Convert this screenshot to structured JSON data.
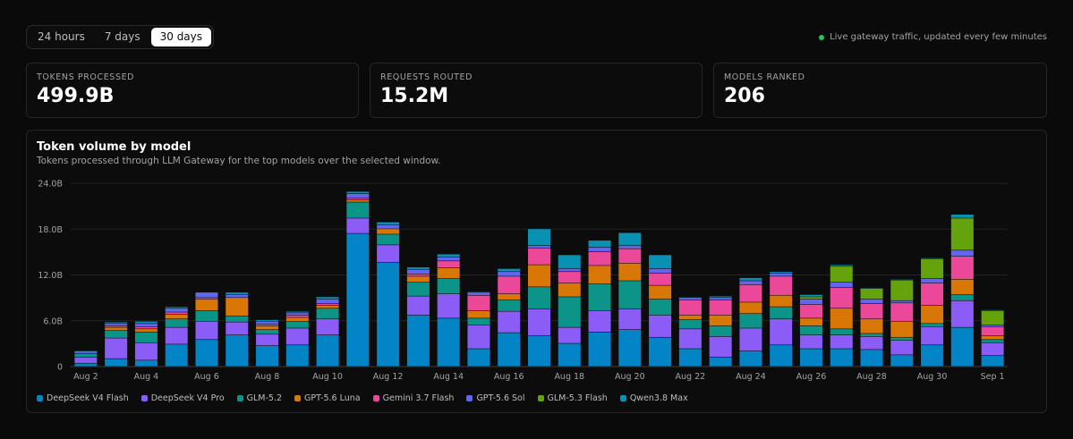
{
  "range": {
    "options": [
      "24 hours",
      "7 days",
      "30 days"
    ],
    "selected": "30 days"
  },
  "live_status": "Live gateway traffic, updated every few minutes",
  "stats": [
    {
      "label": "TOKENS PROCESSED",
      "value": "499.9B"
    },
    {
      "label": "REQUESTS ROUTED",
      "value": "15.2M"
    },
    {
      "label": "MODELS RANKED",
      "value": "206"
    }
  ],
  "colors": {
    "live_dot": "#22c55e",
    "active_toggle": "#ffffff"
  },
  "chart_data": {
    "type": "bar",
    "stacked": true,
    "title": "Token volume by model",
    "subtitle": "Tokens processed through LLM Gateway for the top models over the selected window.",
    "xlabel": "",
    "ylabel": "",
    "ylim": [
      0,
      24
    ],
    "y_unit": "B",
    "y_ticks": [
      "0",
      "6.0B",
      "12.0B",
      "18.0B",
      "24.0B"
    ],
    "grid": true,
    "legend_position": "bottom-left",
    "categories": [
      "Aug 2",
      "Aug 3",
      "Aug 4",
      "Aug 5",
      "Aug 6",
      "Aug 7",
      "Aug 8",
      "Aug 9",
      "Aug 10",
      "Aug 11",
      "Aug 12",
      "Aug 13",
      "Aug 14",
      "Aug 15",
      "Aug 16",
      "Aug 17",
      "Aug 18",
      "Aug 19",
      "Aug 20",
      "Aug 21",
      "Aug 22",
      "Aug 23",
      "Aug 24",
      "Aug 25",
      "Aug 26",
      "Aug 27",
      "Aug 28",
      "Aug 29",
      "Aug 30",
      "Aug 31",
      "Sep 1"
    ],
    "x_tick_labels": [
      "Aug 2",
      "Aug 4",
      "Aug 6",
      "Aug 8",
      "Aug 10",
      "Aug 12",
      "Aug 14",
      "Aug 16",
      "Aug 18",
      "Aug 20",
      "Aug 22",
      "Aug 24",
      "Aug 26",
      "Aug 28",
      "Aug 30",
      "Sep 1"
    ],
    "series": [
      {
        "name": "DeepSeek V4 Flash",
        "color": "#0284c7",
        "values": [
          0.4,
          1.0,
          0.8,
          2.9,
          3.5,
          4.1,
          2.7,
          2.8,
          4.1,
          17.4,
          13.6,
          6.7,
          6.3,
          2.3,
          4.4,
          4.0,
          3.0,
          4.5,
          4.8,
          3.8,
          2.3,
          1.2,
          2.0,
          2.8,
          2.3,
          2.3,
          2.2,
          1.5,
          2.8,
          5.1,
          1.4
        ]
      },
      {
        "name": "DeepSeek V4 Pro",
        "color": "#8b5cf6",
        "values": [
          0.8,
          2.7,
          2.3,
          2.2,
          2.4,
          1.7,
          1.5,
          2.2,
          2.1,
          2.0,
          2.3,
          2.5,
          3.2,
          3.1,
          2.8,
          3.5,
          2.1,
          2.8,
          2.7,
          2.9,
          2.6,
          2.7,
          3.0,
          3.4,
          1.8,
          1.8,
          1.7,
          1.9,
          2.4,
          3.5,
          1.7
        ]
      },
      {
        "name": "GLM-5.2",
        "color": "#0d9488",
        "values": [
          0.5,
          1.0,
          1.4,
          1.1,
          1.4,
          0.8,
          0.6,
          0.9,
          1.4,
          2.1,
          1.4,
          1.8,
          2.0,
          0.9,
          1.5,
          2.9,
          4.0,
          3.5,
          3.7,
          2.1,
          1.2,
          1.4,
          1.9,
          1.6,
          1.2,
          0.8,
          0.4,
          0.4,
          0.4,
          0.8,
          0.4
        ]
      },
      {
        "name": "GPT-5.6 Luna",
        "color": "#d97706",
        "values": [
          0.0,
          0.4,
          0.4,
          0.6,
          1.5,
          2.4,
          0.5,
          0.5,
          0.4,
          0.3,
          0.7,
          0.8,
          1.4,
          1.0,
          0.8,
          2.9,
          1.8,
          2.4,
          2.3,
          1.8,
          0.6,
          1.4,
          1.5,
          1.5,
          1.0,
          2.7,
          1.9,
          2.1,
          2.4,
          2.0,
          0.5
        ]
      },
      {
        "name": "Gemini 3.7 Flash",
        "color": "#ec4899",
        "values": [
          0.0,
          0.2,
          0.3,
          0.3,
          0.2,
          0.0,
          0.2,
          0.3,
          0.2,
          0.2,
          0.0,
          0.3,
          0.9,
          2.0,
          2.3,
          2.2,
          1.5,
          1.8,
          1.9,
          1.6,
          2.0,
          2.0,
          2.3,
          2.5,
          1.8,
          2.7,
          2.0,
          2.4,
          2.9,
          3.0,
          1.2
        ]
      },
      {
        "name": "GPT-5.6 Sol",
        "color": "#6366f1",
        "values": [
          0.3,
          0.3,
          0.4,
          0.5,
          0.7,
          0.4,
          0.4,
          0.3,
          0.6,
          0.6,
          0.5,
          0.6,
          0.5,
          0.4,
          0.6,
          0.3,
          0.4,
          0.6,
          0.4,
          0.6,
          0.3,
          0.3,
          0.5,
          0.4,
          0.7,
          0.7,
          0.6,
          0.3,
          0.6,
          0.8,
          0.2
        ]
      },
      {
        "name": "GLM-5.3 Flash",
        "color": "#65a30d",
        "values": [
          0,
          0,
          0,
          0,
          0,
          0,
          0,
          0,
          0,
          0,
          0,
          0,
          0,
          0,
          0,
          0,
          0,
          0,
          0,
          0,
          0,
          0,
          0,
          0,
          0.3,
          2.1,
          1.4,
          2.7,
          2.6,
          4.2,
          1.9
        ]
      },
      {
        "name": "Qwen3.8 Max",
        "color": "#0891b2",
        "values": [
          0.1,
          0.2,
          0.3,
          0.2,
          0.0,
          0.3,
          0.2,
          0.2,
          0.3,
          0.3,
          0.4,
          0.3,
          0.4,
          0.1,
          0.4,
          2.2,
          1.8,
          0.9,
          1.7,
          1.8,
          0.1,
          0.2,
          0.4,
          0.2,
          0.3,
          0.2,
          0.1,
          0.1,
          0.1,
          0.5,
          0.1
        ]
      }
    ]
  }
}
